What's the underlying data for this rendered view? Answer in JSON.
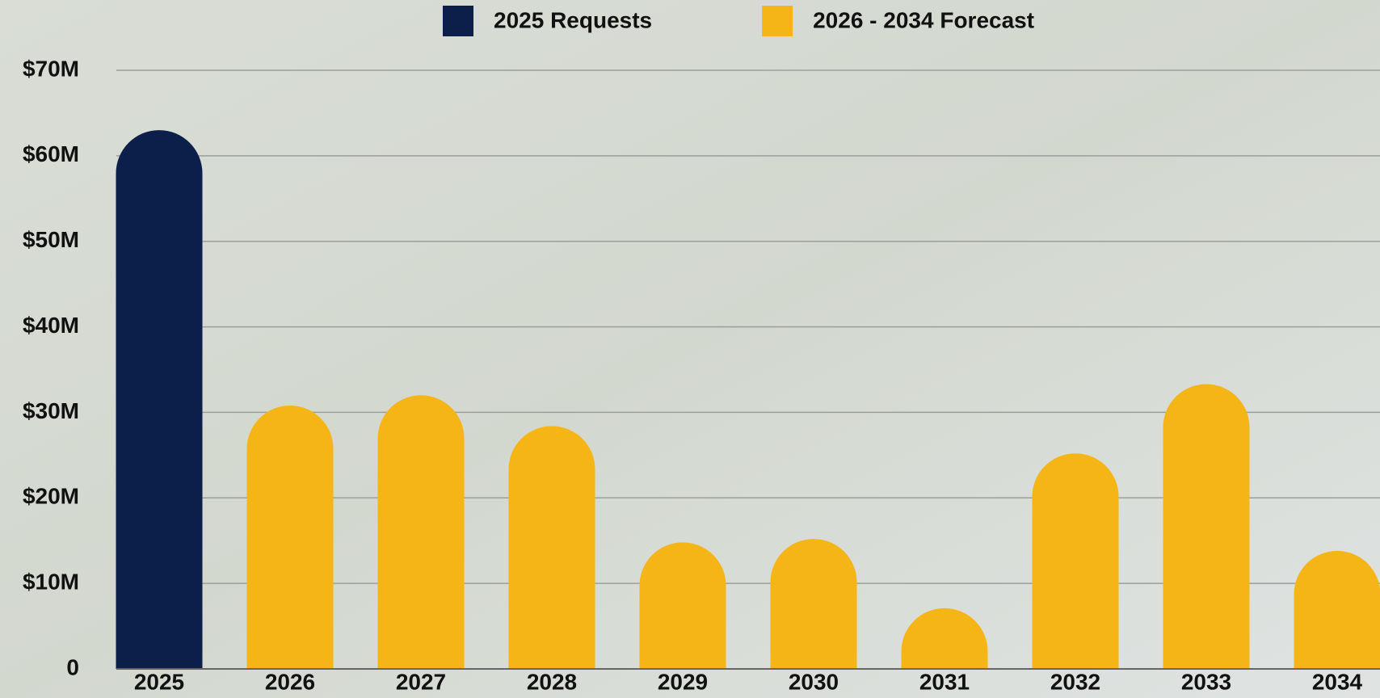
{
  "chart_data": {
    "type": "bar",
    "categories": [
      "2025",
      "2026",
      "2027",
      "2028",
      "2029",
      "2030",
      "2031",
      "2032",
      "2033",
      "2034"
    ],
    "series": [
      {
        "name": "2025 Requests",
        "color": "#0b1f4a",
        "values": [
          63000000,
          null,
          null,
          null,
          null,
          null,
          null,
          null,
          null,
          null
        ]
      },
      {
        "name": "2026 - 2034 Forecast",
        "color": "#f5b516",
        "values": [
          null,
          30800000,
          32000000,
          28400000,
          14800000,
          15200000,
          7100000,
          25200000,
          33300000,
          13800000
        ]
      }
    ],
    "ylim": [
      0,
      70000000
    ],
    "yticks": [
      0,
      {
        "value": 10000000,
        "label": "$10M"
      },
      {
        "value": 20000000,
        "label": "$20M"
      },
      {
        "value": 30000000,
        "label": "$30M"
      },
      {
        "value": 40000000,
        "label": "$40M"
      },
      {
        "value": 50000000,
        "label": "$50M"
      },
      {
        "value": 60000000,
        "label": "$60M"
      },
      {
        "value": 70000000,
        "label": "$70M"
      }
    ],
    "grid": true,
    "legend": "top"
  }
}
